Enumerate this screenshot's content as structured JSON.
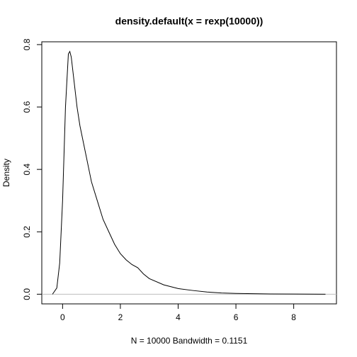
{
  "chart_data": {
    "type": "line",
    "title": "density.default(x = rexp(10000))",
    "x_label": "N = 10000   Bandwidth = 0.1151",
    "y_label": "Density",
    "x": [
      -0.35,
      -0.2,
      -0.1,
      0,
      0.1,
      0.2,
      0.25,
      0.3,
      0.4,
      0.5,
      0.6,
      0.8,
      1.0,
      1.2,
      1.4,
      1.6,
      1.8,
      2.0,
      2.2,
      2.4,
      2.6,
      2.8,
      3.0,
      3.5,
      4.0,
      4.5,
      5.0,
      5.5,
      6,
      7,
      8,
      9.1
    ],
    "values": [
      0.0,
      0.02,
      0.1,
      0.3,
      0.6,
      0.77,
      0.778,
      0.76,
      0.68,
      0.6,
      0.54,
      0.45,
      0.36,
      0.3,
      0.24,
      0.2,
      0.16,
      0.13,
      0.11,
      0.095,
      0.085,
      0.065,
      0.05,
      0.03,
      0.018,
      0.012,
      0.007,
      0.004,
      0.0025,
      0.001,
      0.0005,
      0.0
    ],
    "color": "#000000",
    "xlim": [
      -0.72,
      9.48
    ],
    "xticks": [
      0,
      2,
      4,
      6,
      8
    ],
    "ylim": [
      -0.031,
      0.809
    ],
    "yticks": [
      {
        "value": 0,
        "label": "0.0"
      },
      0.2,
      0.4,
      0.6,
      0.8
    ]
  }
}
